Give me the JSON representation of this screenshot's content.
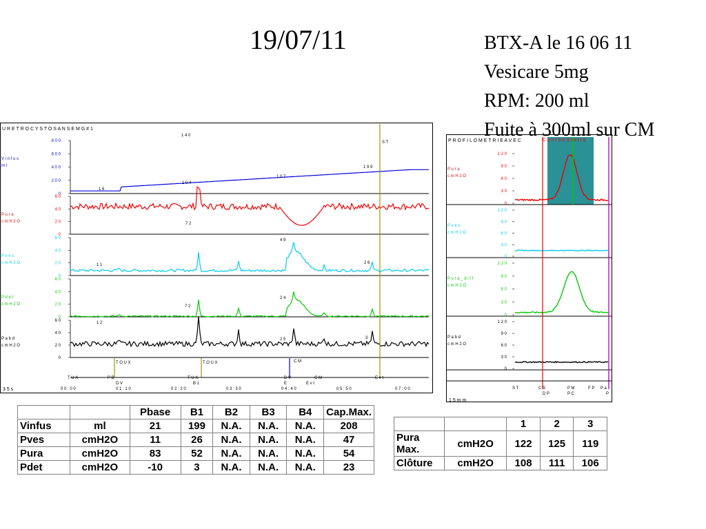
{
  "title": "19/07/11",
  "notes": [
    "BTX-A  le 16 06 11",
    "Vesicare 5mg",
    "RPM: 200 ml",
    "Fuite à 300ml sur CM"
  ],
  "chart_data": [
    {
      "type": "line",
      "title": "U R E T R O C Y S T O   S A N S   E M G # 1",
      "panels": [
        {
          "name": "V i n f u s  m l",
          "color": "#0000dd",
          "ticks": [
            "8 0 0",
            "6 0 0",
            "4 0 0",
            "2 0 0",
            "0"
          ],
          "ylim": [
            0,
            800
          ]
        },
        {
          "name": "P u r a  c m H 2 O",
          "color": "#ee0000",
          "ticks": [
            "6 0",
            "4 0",
            "2 0",
            "0"
          ],
          "ylim": [
            0,
            60
          ]
        },
        {
          "name": "P v e s  c m H 2 O",
          "color": "#00ccee",
          "ticks": [
            "6 0",
            "4 0",
            "2 0",
            "0"
          ],
          "ylim": [
            0,
            60
          ]
        },
        {
          "name": "P d e t  c m H 2 O",
          "color": "#00cc00",
          "ticks": [
            "6 0",
            "4 0",
            "2 0",
            "0"
          ],
          "ylim": [
            0,
            60
          ]
        },
        {
          "name": "P a b d  c m H 2 O",
          "color": "#000000",
          "ticks": [
            "6 0",
            "4 0",
            "2 0",
            "0"
          ],
          "ylim": [
            0,
            60
          ]
        }
      ],
      "annotations": [
        "1 4 0",
        "1 0 4",
        "1 6",
        "1 0 7",
        "1 9 9",
        "7 2",
        "4 9",
        "1 1",
        "2 6",
        "7 2",
        "2 4",
        "1 2",
        "2 5",
        "3"
      ],
      "events": [
        "T O U X",
        "T O U X",
        "C M",
        "S T",
        "T U X",
        "P B",
        "D V",
        "T U X",
        "B 1",
        "D V",
        "E",
        "C M",
        "E v t",
        "E v t"
      ],
      "time_ticks": [
        "0 0 : 0 0",
        "0 1 : 1 0",
        "0 2 : 2 0",
        "0 3 : 3 0",
        "0 4 : 4 0",
        "0 5 : 5 0",
        "0 7 : 0 0"
      ],
      "scale_label": "3 5 s"
    },
    {
      "type": "line",
      "title": "P R O F I L O M E T R I E  A V E C",
      "legend": "C o u r b e  S t a t i q",
      "panels": [
        {
          "name": "P u r a  c m H 2 O",
          "color": "#ee0000",
          "ticks": [
            "1 2 0",
            "9 0",
            "6 0",
            "3 0",
            "0"
          ],
          "ylim": [
            0,
            120
          ]
        },
        {
          "name": "P v e s  c m H 2 O",
          "color": "#00ccee",
          "ticks": [
            "1 2 0",
            "9 0",
            "6 0",
            "3 0",
            "0"
          ],
          "ylim": [
            0,
            120
          ]
        },
        {
          "name": "P u r a _ d i f f  c m H 2 O",
          "color": "#00cc00",
          "ticks": [
            "1 2 0",
            "9 0",
            "6 0",
            "3 0",
            "0"
          ],
          "ylim": [
            0,
            120
          ]
        },
        {
          "name": "P a b d  c m H 2 O",
          "color": "#000000",
          "ticks": [
            "1 2 0",
            "9 0",
            "6 0",
            "3 0",
            "0"
          ],
          "ylim": [
            0,
            120
          ]
        }
      ],
      "events": [
        "S T",
        "C S",
        "D P",
        "P M",
        "P C",
        "F P",
        "P a",
        "P"
      ],
      "scale_label": "1 5  m m"
    }
  ],
  "table1": {
    "headers": [
      "",
      "",
      "Pbase",
      "B1",
      "B2",
      "B3",
      "B4",
      "Cap.Max."
    ],
    "rows": [
      [
        "Vinfus",
        "ml",
        "21",
        "199",
        "N.A.",
        "N.A.",
        "N.A.",
        "208"
      ],
      [
        "Pves",
        "cmH2O",
        "11",
        "26",
        "N.A.",
        "N.A.",
        "N.A.",
        "47"
      ],
      [
        "Pura",
        "cmH2O",
        "83",
        "52",
        "N.A.",
        "N.A.",
        "N.A.",
        "54"
      ],
      [
        "Pdet",
        "cmH2O",
        "-10",
        "3",
        "N.A.",
        "N.A.",
        "N.A.",
        "23"
      ]
    ]
  },
  "table2": {
    "headers": [
      "",
      "",
      "1",
      "2",
      "3"
    ],
    "rows": [
      [
        "Pura Max.",
        "cmH2O",
        "122",
        "125",
        "119"
      ],
      [
        "Clôture",
        "cmH2O",
        "108",
        "111",
        "106"
      ]
    ]
  }
}
